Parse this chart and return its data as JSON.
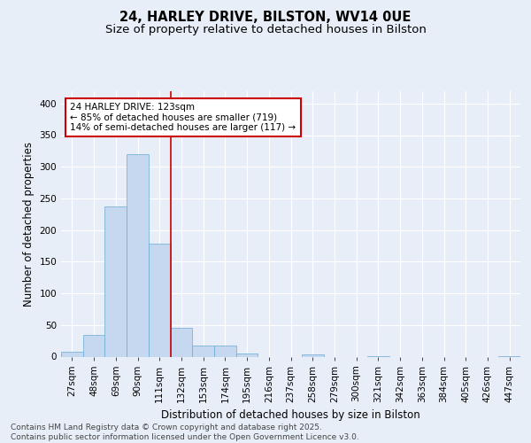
{
  "title_line1": "24, HARLEY DRIVE, BILSTON, WV14 0UE",
  "title_line2": "Size of property relative to detached houses in Bilston",
  "xlabel": "Distribution of detached houses by size in Bilston",
  "ylabel": "Number of detached properties",
  "bar_labels": [
    "27sqm",
    "48sqm",
    "69sqm",
    "90sqm",
    "111sqm",
    "132sqm",
    "153sqm",
    "174sqm",
    "195sqm",
    "216sqm",
    "237sqm",
    "258sqm",
    "279sqm",
    "300sqm",
    "321sqm",
    "342sqm",
    "363sqm",
    "384sqm",
    "405sqm",
    "426sqm",
    "447sqm"
  ],
  "bar_heights": [
    8,
    34,
    238,
    320,
    178,
    46,
    17,
    17,
    5,
    0,
    0,
    3,
    0,
    0,
    1,
    0,
    0,
    0,
    0,
    0,
    1
  ],
  "bar_color": "#c5d8f0",
  "bar_edge_color": "#6aaad4",
  "background_color": "#e8eef8",
  "plot_bg_color": "#e8eef8",
  "grid_color": "#ffffff",
  "vline_x_index": 4.5,
  "vline_color": "#cc0000",
  "annotation_line1": "24 HARLEY DRIVE: 123sqm",
  "annotation_line2": "← 85% of detached houses are smaller (719)",
  "annotation_line3": "14% of semi-detached houses are larger (117) →",
  "annotation_box_color": "#ffffff",
  "annotation_box_edge": "#cc0000",
  "annotation_fontsize": 7.5,
  "ylim": [
    0,
    420
  ],
  "yticks": [
    0,
    50,
    100,
    150,
    200,
    250,
    300,
    350,
    400
  ],
  "footer_text": "Contains HM Land Registry data © Crown copyright and database right 2025.\nContains public sector information licensed under the Open Government Licence v3.0.",
  "title_fontsize": 10.5,
  "subtitle_fontsize": 9.5,
  "ylabel_fontsize": 8.5,
  "xlabel_fontsize": 8.5,
  "footer_fontsize": 6.5,
  "tick_fontsize": 7.5
}
